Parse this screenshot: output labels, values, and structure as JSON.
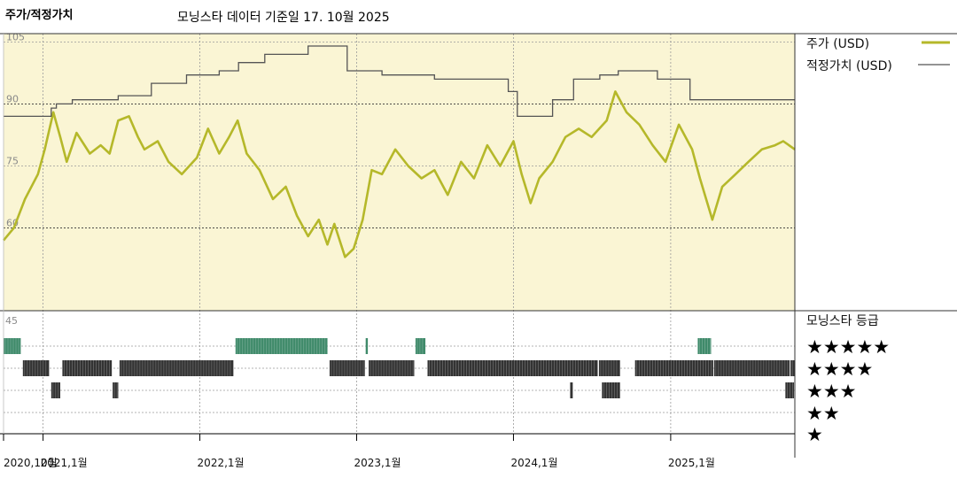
{
  "chart_data": {
    "type": "line",
    "title": "주가/적정가치",
    "subtitle": "모닝스타 데이터 기준일 17. 10월 2025",
    "y_ticks": [
      105,
      90,
      75,
      60
    ],
    "ylim": [
      40,
      107
    ],
    "x_start": "2020-10-01",
    "x_end": "2025-10-17",
    "x_ticks": [
      {
        "date": "2020-10-01",
        "label": "2020,10월"
      },
      {
        "date": "2021-01-01",
        "label": "2021,1월"
      },
      {
        "date": "2022-01-01",
        "label": "2022,1월"
      },
      {
        "date": "2023-01-01",
        "label": "2023,1월"
      },
      {
        "date": "2024-01-01",
        "label": "2024,1월"
      },
      {
        "date": "2025-01-01",
        "label": "2025,1월"
      }
    ],
    "series": [
      {
        "name": "주가 (USD)",
        "color": "#b5b82a",
        "points": [
          [
            "2020-10-01",
            57
          ],
          [
            "2020-10-25",
            60
          ],
          [
            "2020-11-20",
            67
          ],
          [
            "2020-12-20",
            73
          ],
          [
            "2021-01-05",
            79
          ],
          [
            "2021-01-25",
            88
          ],
          [
            "2021-02-10",
            82
          ],
          [
            "2021-02-25",
            76
          ],
          [
            "2021-03-20",
            83
          ],
          [
            "2021-04-20",
            78
          ],
          [
            "2021-05-15",
            80
          ],
          [
            "2021-06-05",
            78
          ],
          [
            "2021-06-25",
            86
          ],
          [
            "2021-07-20",
            87
          ],
          [
            "2021-08-10",
            82
          ],
          [
            "2021-08-25",
            79
          ],
          [
            "2021-09-25",
            81
          ],
          [
            "2021-10-20",
            76
          ],
          [
            "2021-11-20",
            73
          ],
          [
            "2021-12-25",
            77
          ],
          [
            "2022-01-20",
            84
          ],
          [
            "2022-02-15",
            78
          ],
          [
            "2022-03-10",
            82
          ],
          [
            "2022-03-30",
            86
          ],
          [
            "2022-04-20",
            78
          ],
          [
            "2022-05-20",
            74
          ],
          [
            "2022-06-20",
            67
          ],
          [
            "2022-07-20",
            70
          ],
          [
            "2022-08-15",
            63
          ],
          [
            "2022-09-10",
            58
          ],
          [
            "2022-10-05",
            62
          ],
          [
            "2022-10-25",
            56
          ],
          [
            "2022-11-10",
            61
          ],
          [
            "2022-12-05",
            53
          ],
          [
            "2022-12-25",
            55
          ],
          [
            "2023-01-15",
            62
          ],
          [
            "2023-02-05",
            74
          ],
          [
            "2023-03-01",
            73
          ],
          [
            "2023-04-01",
            79
          ],
          [
            "2023-05-01",
            75
          ],
          [
            "2023-06-01",
            72
          ],
          [
            "2023-07-01",
            74
          ],
          [
            "2023-08-01",
            68
          ],
          [
            "2023-09-01",
            76
          ],
          [
            "2023-10-01",
            72
          ],
          [
            "2023-11-01",
            80
          ],
          [
            "2023-12-01",
            75
          ],
          [
            "2024-01-01",
            81
          ],
          [
            "2024-01-20",
            73
          ],
          [
            "2024-02-10",
            66
          ],
          [
            "2024-03-01",
            72
          ],
          [
            "2024-04-01",
            76
          ],
          [
            "2024-05-01",
            82
          ],
          [
            "2024-06-01",
            84
          ],
          [
            "2024-07-01",
            82
          ],
          [
            "2024-08-05",
            86
          ],
          [
            "2024-08-25",
            93
          ],
          [
            "2024-09-20",
            88
          ],
          [
            "2024-10-20",
            85
          ],
          [
            "2024-11-20",
            80
          ],
          [
            "2024-12-20",
            76
          ],
          [
            "2025-01-20",
            85
          ],
          [
            "2025-02-20",
            79
          ],
          [
            "2025-03-10",
            72
          ],
          [
            "2025-04-08",
            62
          ],
          [
            "2025-05-01",
            70
          ],
          [
            "2025-06-01",
            73
          ],
          [
            "2025-07-01",
            76
          ],
          [
            "2025-08-01",
            79
          ],
          [
            "2025-09-01",
            80
          ],
          [
            "2025-09-20",
            81
          ],
          [
            "2025-10-17",
            79
          ]
        ]
      },
      {
        "name": "적정가치 (USD)",
        "color": "#555555",
        "steps": [
          [
            "2020-10-01",
            87
          ],
          [
            "2021-01-20",
            89
          ],
          [
            "2021-02-01",
            90
          ],
          [
            "2021-03-10",
            91
          ],
          [
            "2021-06-25",
            92
          ],
          [
            "2021-09-10",
            95
          ],
          [
            "2021-12-01",
            97
          ],
          [
            "2022-02-15",
            98
          ],
          [
            "2022-04-01",
            100
          ],
          [
            "2022-06-01",
            102
          ],
          [
            "2022-09-10",
            104
          ],
          [
            "2022-11-20",
            104
          ],
          [
            "2022-12-10",
            98
          ],
          [
            "2023-03-01",
            97
          ],
          [
            "2023-07-01",
            96
          ],
          [
            "2023-12-20",
            93
          ],
          [
            "2024-01-10",
            87
          ],
          [
            "2024-04-01",
            91
          ],
          [
            "2024-05-20",
            96
          ],
          [
            "2024-07-20",
            97
          ],
          [
            "2024-09-01",
            98
          ],
          [
            "2024-12-01",
            96
          ],
          [
            "2025-02-15",
            91
          ],
          [
            "2025-10-17",
            91
          ]
        ]
      }
    ],
    "rating_panel": {
      "title": "모닝스타 등급",
      "levels": [
        5,
        4,
        3,
        2,
        1
      ],
      "star_labels": [
        "★★★★★",
        "★★★★",
        "★★★",
        "★★",
        "★"
      ],
      "y_tick": "45",
      "periods": [
        {
          "level": 5,
          "color": "#3f8a6a",
          "start": "2020-10-01",
          "end": "2020-11-10"
        },
        {
          "level": 4,
          "color": "#333333",
          "start": "2020-11-15",
          "end": "2021-01-15"
        },
        {
          "level": 3,
          "color": "#333333",
          "start": "2021-01-20",
          "end": "2021-02-10"
        },
        {
          "level": 4,
          "color": "#333333",
          "start": "2021-02-15",
          "end": "2021-06-10"
        },
        {
          "level": 3,
          "color": "#333333",
          "start": "2021-06-12",
          "end": "2021-06-25"
        },
        {
          "level": 4,
          "color": "#333333",
          "start": "2021-06-28",
          "end": "2022-03-20"
        },
        {
          "level": 5,
          "color": "#3f8a6a",
          "start": "2022-03-25",
          "end": "2022-10-25"
        },
        {
          "level": 4,
          "color": "#333333",
          "start": "2022-10-30",
          "end": "2023-01-20"
        },
        {
          "level": 5,
          "color": "#3f8a6a",
          "start": "2023-01-22",
          "end": "2023-01-27"
        },
        {
          "level": 4,
          "color": "#333333",
          "start": "2023-01-29",
          "end": "2023-05-15"
        },
        {
          "level": 5,
          "color": "#3f8a6a",
          "start": "2023-05-18",
          "end": "2023-06-10"
        },
        {
          "level": 4,
          "color": "#333333",
          "start": "2023-06-15",
          "end": "2024-07-15"
        },
        {
          "level": 3,
          "color": "#333333",
          "start": "2024-05-12",
          "end": "2024-05-18"
        },
        {
          "level": 4,
          "color": "#333333",
          "start": "2024-07-18",
          "end": "2024-09-05"
        },
        {
          "level": 3,
          "color": "#333333",
          "start": "2024-07-25",
          "end": "2024-09-05"
        },
        {
          "level": 4,
          "color": "#333333",
          "start": "2024-10-10",
          "end": "2025-04-10"
        },
        {
          "level": 5,
          "color": "#3f8a6a",
          "start": "2025-03-05",
          "end": "2025-04-05"
        },
        {
          "level": 4,
          "color": "#333333",
          "start": "2025-04-12",
          "end": "2025-10-05"
        },
        {
          "level": 3,
          "color": "#333333",
          "start": "2025-09-25",
          "end": "2025-10-15"
        },
        {
          "level": 4,
          "color": "#333333",
          "start": "2025-10-07",
          "end": "2025-10-17"
        }
      ]
    },
    "colors": {
      "price_panel_bg": "#faf5d4",
      "price_line": "#b5b82a",
      "fair_value_line": "#555555",
      "grid": "#9a9a9a",
      "border": "#333333"
    },
    "grid": true,
    "legend_position": "right"
  }
}
